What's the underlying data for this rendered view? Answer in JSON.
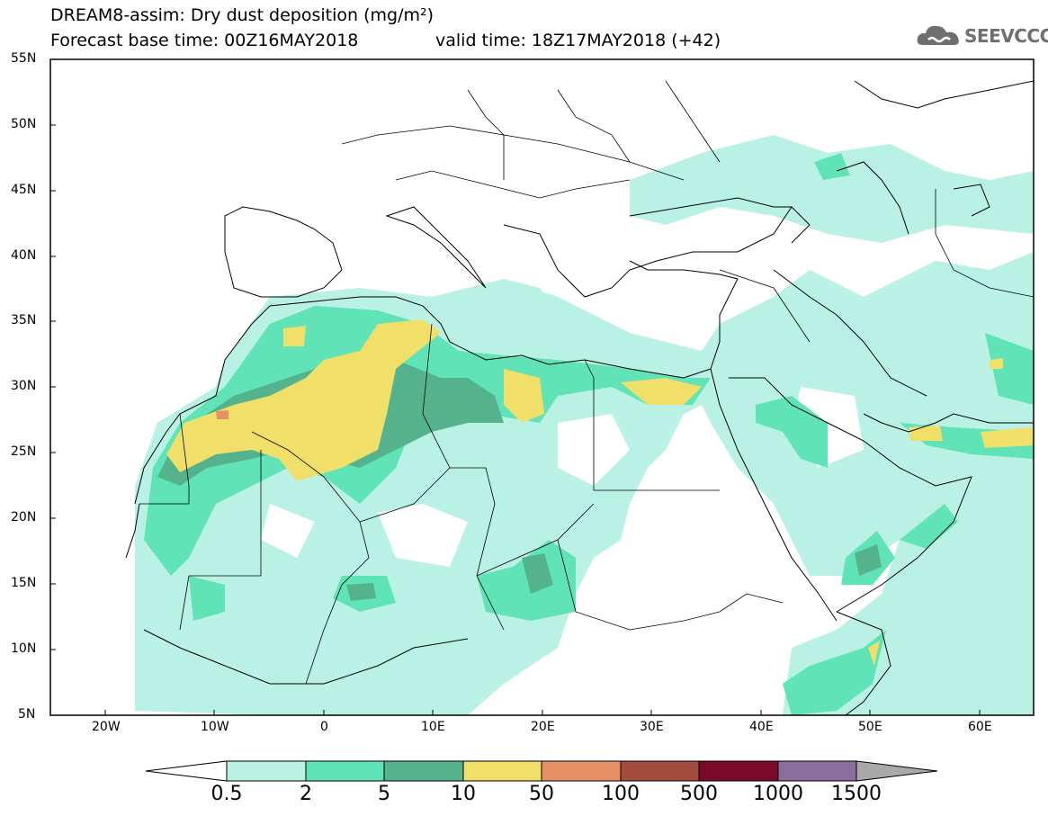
{
  "header": {
    "title": "DREAM8-assim: Dry dust deposition (mg/m²)",
    "base_time": "Forecast base time: 00Z16MAY2018",
    "valid_time": "valid time: 18Z17MAY2018 (+42)"
  },
  "logo": {
    "text": "SEEVCCC",
    "icon": "cloud-icon"
  },
  "map": {
    "lon_range": [
      -25,
      65
    ],
    "lat_range": [
      5,
      55
    ],
    "lat_labels": [
      "55N",
      "50N",
      "45N",
      "40N",
      "35N",
      "30N",
      "25N",
      "20N",
      "15N",
      "10N",
      "5N"
    ],
    "lon_labels": [
      "20W",
      "10W",
      "0",
      "10E",
      "20E",
      "30E",
      "40E",
      "50E",
      "60E"
    ]
  },
  "colorbar": {
    "labels": [
      "0.5",
      "2",
      "5",
      "10",
      "50",
      "100",
      "500",
      "1000",
      "1500"
    ],
    "colors": [
      "#b9f2e4",
      "#5fe3b7",
      "#54b38c",
      "#f0e06a",
      "#e79066",
      "#a44c3b",
      "#7a0a28",
      "#8b6e9e",
      "#a9a9a9"
    ]
  }
}
